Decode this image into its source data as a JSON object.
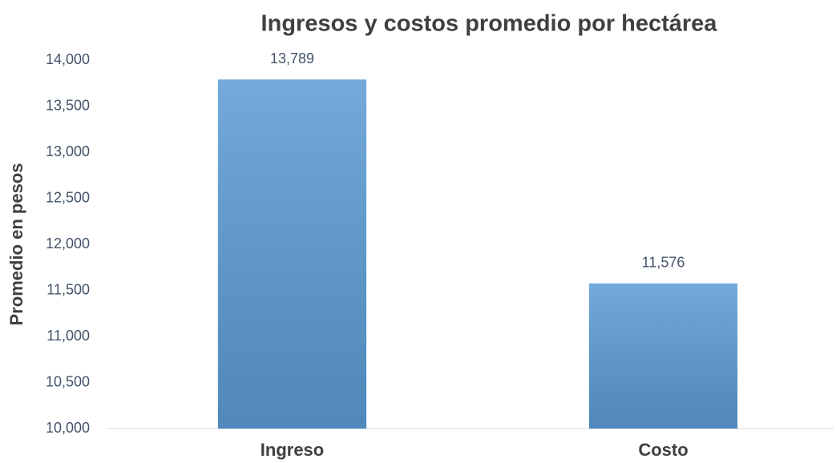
{
  "chart_data": {
    "type": "bar",
    "title": "Ingresos y costos promedio por hectárea",
    "y_label": "Promedio en pesos",
    "categories": [
      "Ingreso",
      "Costo"
    ],
    "values": [
      13789,
      11576
    ],
    "value_labels": [
      "13,789",
      "11,576"
    ],
    "color": "#5b9bd5",
    "ylim": [
      10000,
      14000
    ],
    "yticks": [
      {
        "value": 10000,
        "label": "10,000"
      },
      {
        "value": 10500,
        "label": "10,500"
      },
      {
        "value": 11000,
        "label": "11,000"
      },
      {
        "value": 11500,
        "label": "11,500"
      },
      {
        "value": 12000,
        "label": "12,000"
      },
      {
        "value": 12500,
        "label": "12,500"
      },
      {
        "value": 13000,
        "label": "13,000"
      },
      {
        "value": 13500,
        "label": "13,500"
      },
      {
        "value": 14000,
        "label": "14,000"
      }
    ],
    "grid": false
  }
}
